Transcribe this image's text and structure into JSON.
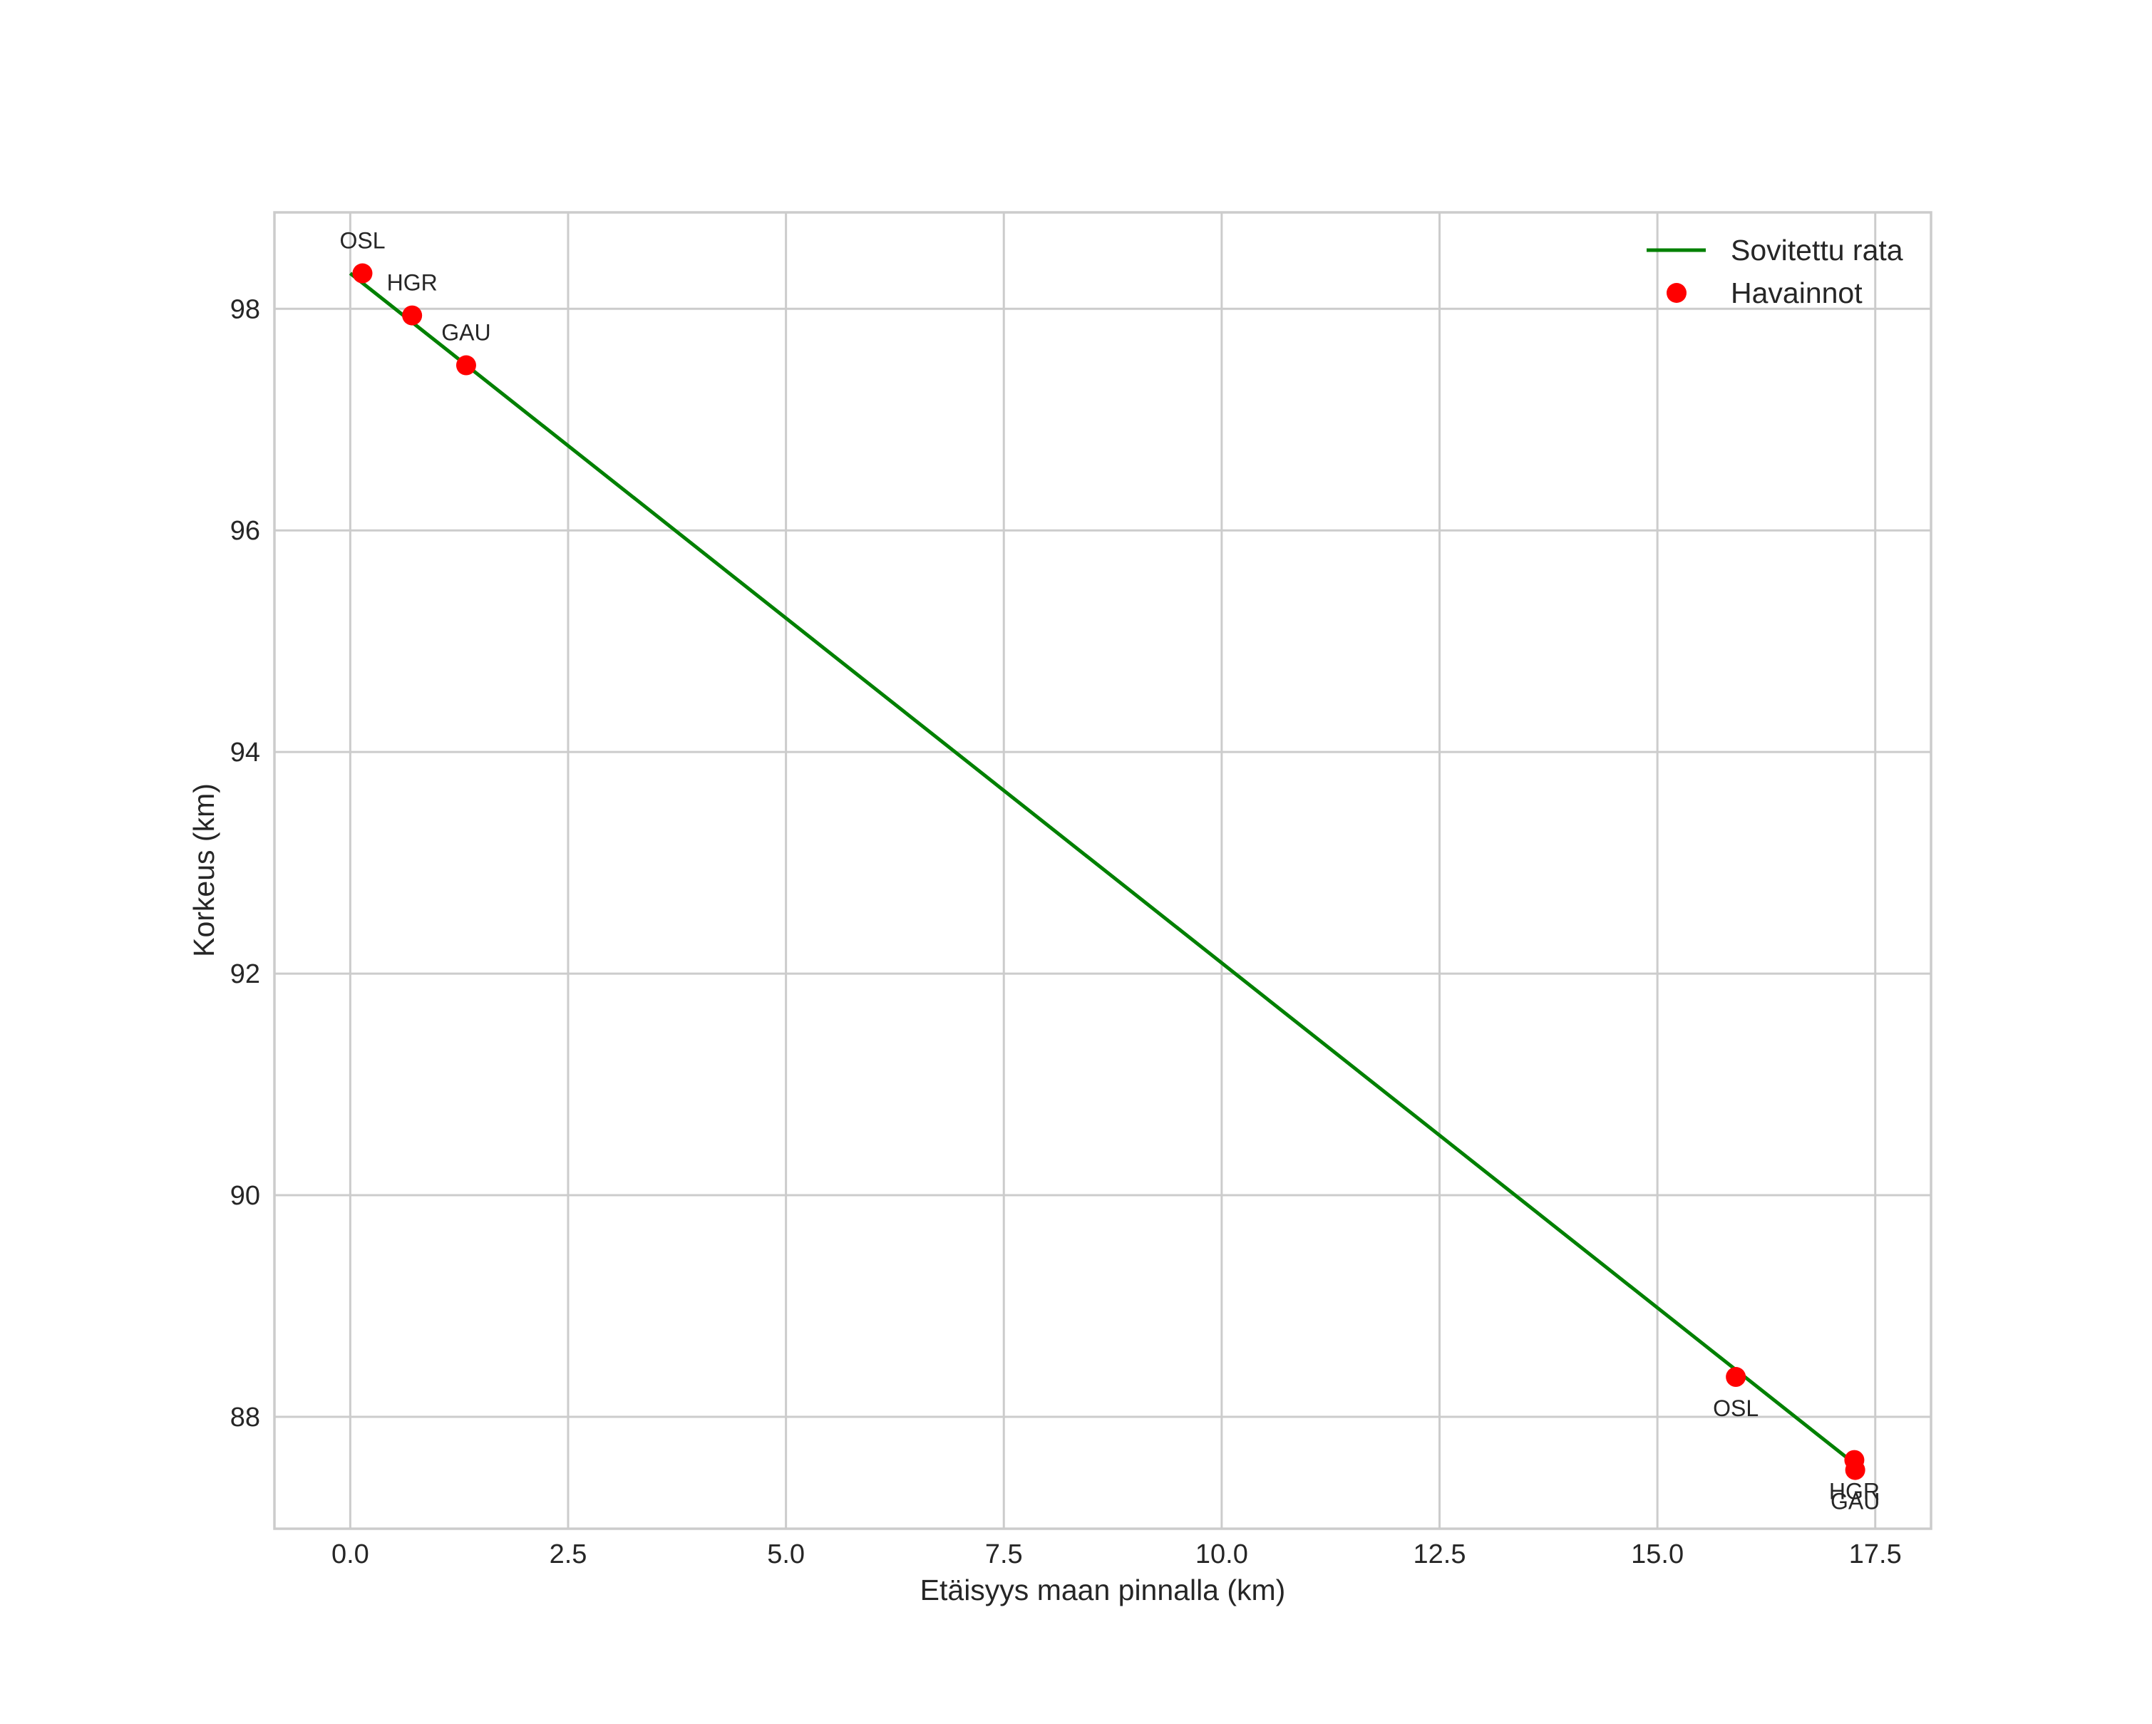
{
  "chart_data": {
    "type": "line",
    "title": "",
    "xlabel": "Etäisyys maan pinnalla (km)",
    "ylabel": "Korkeus (km)",
    "xlim": [
      -0.87,
      18.14
    ],
    "ylim": [
      86.99,
      98.87
    ],
    "grid": true,
    "legend_position": "upper right",
    "x_ticks": [
      0.0,
      2.5,
      5.0,
      7.5,
      10.0,
      12.5,
      15.0,
      17.5
    ],
    "x_tick_labels": [
      "0.0",
      "2.5",
      "5.0",
      "7.5",
      "10.0",
      "12.5",
      "15.0",
      "17.5"
    ],
    "y_ticks": [
      88,
      90,
      92,
      94,
      96,
      98
    ],
    "y_tick_labels": [
      "88",
      "90",
      "92",
      "94",
      "96",
      "98"
    ],
    "series": [
      {
        "name": "Sovitettu rata",
        "type": "line",
        "color": "#008000",
        "x": [
          0.0,
          17.16
        ],
        "y": [
          98.32,
          87.64
        ]
      },
      {
        "name": "Havainnot",
        "type": "scatter",
        "color": "#ff0000",
        "points": [
          {
            "label": "OSL",
            "x": 0.14,
            "y": 98.32,
            "label_pos": "above"
          },
          {
            "label": "HGR",
            "x": 0.71,
            "y": 97.94,
            "label_pos": "above"
          },
          {
            "label": "GAU",
            "x": 1.33,
            "y": 97.49,
            "label_pos": "above"
          },
          {
            "label": "OSL",
            "x": 15.9,
            "y": 88.36,
            "label_pos": "below"
          },
          {
            "label": "HGR",
            "x": 17.26,
            "y": 87.61,
            "label_pos": "below"
          },
          {
            "label": "GAU",
            "x": 17.27,
            "y": 87.52,
            "label_pos": "below"
          }
        ]
      }
    ],
    "legend": [
      {
        "label": "Sovitettu rata",
        "marker": "line",
        "color": "#008000"
      },
      {
        "label": "Havainnot",
        "marker": "circle",
        "color": "#ff0000"
      }
    ]
  }
}
